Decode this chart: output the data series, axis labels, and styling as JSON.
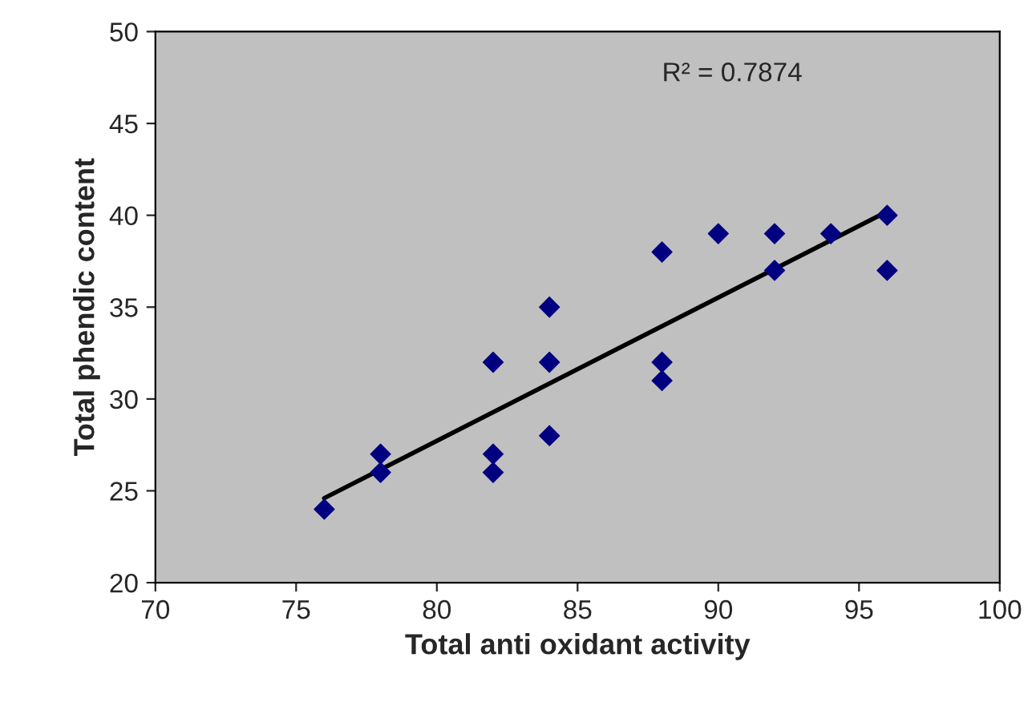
{
  "chart_data": {
    "type": "scatter",
    "xlabel": "Total anti oxidant activity",
    "ylabel": "Total phendic content",
    "annotations": [
      "R² = 0.7874"
    ],
    "xlim": [
      70,
      100
    ],
    "xticks": [
      70,
      75,
      80,
      85,
      90,
      95,
      100
    ],
    "ylim": [
      20,
      50
    ],
    "yticks": [
      20,
      25,
      30,
      35,
      40,
      45,
      50
    ],
    "grid": false,
    "legend": false,
    "series": [
      {
        "marker": "diamond",
        "color": "#000080",
        "x": [
          76,
          78,
          78,
          82,
          82,
          82,
          84,
          84,
          84,
          88,
          88,
          88,
          90,
          92,
          92,
          94,
          96,
          96
        ],
        "values": [
          24,
          27,
          26,
          32,
          27,
          26,
          35,
          32,
          28,
          38,
          32,
          31,
          39,
          39,
          37,
          39,
          40,
          37
        ]
      },
      {
        "type": "line",
        "marker": "none",
        "color": "#000000",
        "x": [
          76,
          96
        ],
        "values": [
          24.6,
          40.2
        ]
      }
    ]
  }
}
